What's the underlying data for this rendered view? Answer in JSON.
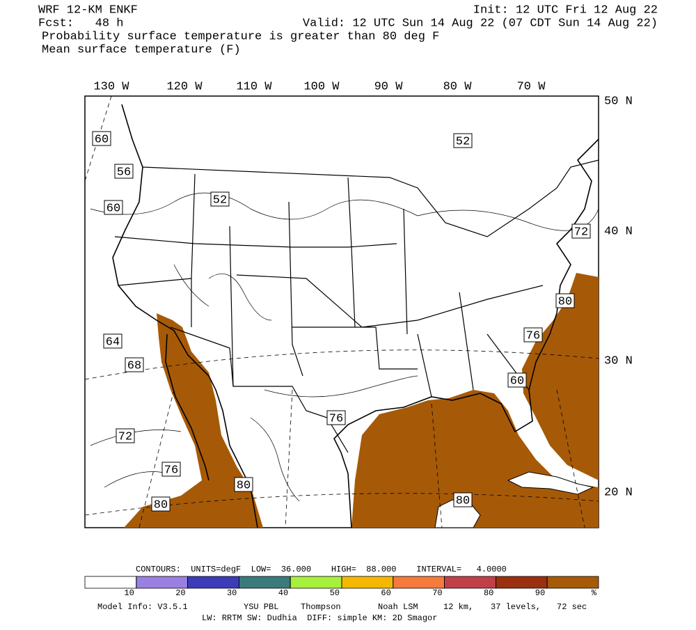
{
  "header": {
    "model": "WRF 12-KM ENKF",
    "init": "Init: 12 UTC Fri 12 Aug 22",
    "fcst": "Fcst:   48 h",
    "valid": "Valid: 12 UTC Sun 14 Aug 22 (07 CDT Sun 14 Aug 22)",
    "field1": "Probability surface temperature is greater than 80 deg F",
    "field2": "Mean surface temperature (F)"
  },
  "map": {
    "lon_labels": [
      "130 W",
      "120 W",
      "110 W",
      "100 W",
      "90 W",
      "80 W",
      "70 W"
    ],
    "lat_labels": [
      "50 N",
      "40 N",
      "30 N",
      "20 N"
    ],
    "contour_labels": [
      "60",
      "56",
      "60",
      "52",
      "52",
      "72",
      "80",
      "76",
      "60",
      "64",
      "68",
      "72",
      "76",
      "80",
      "76",
      "80",
      "80"
    ]
  },
  "colorbar": {
    "contours_info": "CONTOURS:  UNITS=degF  LOW=  36.000    HIGH=  88.000    INTERVAL=   4.0000",
    "range": [
      0,
      100
    ],
    "ticks": [
      10,
      20,
      30,
      40,
      50,
      60,
      70,
      80,
      90
    ],
    "unit": "%",
    "colors": [
      "#ffffff",
      "#9a80e0",
      "#3c3cb8",
      "#3a7a7a",
      "#a8f03c",
      "#f5b800",
      "#f57a3c",
      "#c0404a",
      "#9a3010",
      "#a65a08"
    ]
  },
  "footer": {
    "line1": [
      "Model Info: V3.5.1",
      "YSU PBL",
      "Thompson",
      "Noah LSM",
      "12 km,",
      "37 levels,",
      "72 sec"
    ],
    "line2": "LW: RRTM SW: Dudhia  DIFF: simple KM: 2D Smagor"
  }
}
